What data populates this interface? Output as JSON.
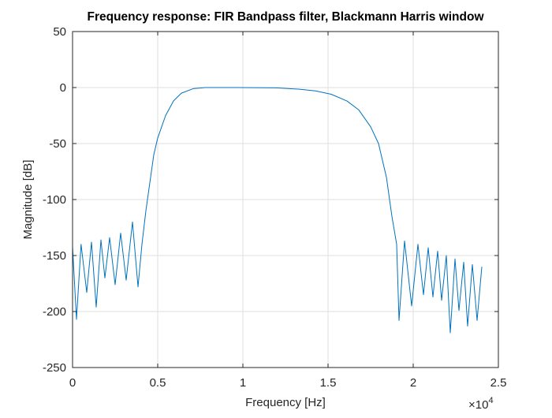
{
  "chart_data": {
    "type": "line",
    "title": "Frequency response: FIR Bandpass filter, Blackmann Harris window",
    "x_label": "Frequency [Hz]",
    "y_label": "Magnitude [dB]",
    "x_multiplier": {
      "base": "×10",
      "exponent": "4"
    },
    "x": [
      0,
      231,
      500,
      833,
      1111,
      1389,
      1667,
      1898,
      2176,
      2500,
      2824,
      3148,
      3519,
      3843,
      4074,
      4306,
      4537,
      4769,
      5000,
      5463,
      5926,
      6389,
      7083,
      7778,
      9630,
      11944,
      13333,
      14259,
      15185,
      16111,
      16806,
      17500,
      17963,
      18426,
      18750,
      19028,
      19167,
      19491,
      19907,
      20278,
      20602,
      20880,
      21157,
      21435,
      21667,
      21944,
      22176,
      22454,
      22685,
      22963,
      23194,
      23472,
      23750,
      24028
    ],
    "series": [
      {
        "color": "#0072bd",
        "values": [
          -142,
          -207,
          -140,
          -183,
          -138,
          -196,
          -136,
          -170,
          -134,
          -176,
          -130,
          -172,
          -120,
          -178,
          -140,
          -110,
          -85,
          -60,
          -45,
          -25,
          -12,
          -5,
          -1,
          0,
          0,
          -0.3,
          -1.5,
          -3,
          -6,
          -12,
          -20,
          -35,
          -50,
          -80,
          -115,
          -140,
          -208,
          -137,
          -195,
          -140,
          -185,
          -143,
          -187,
          -146,
          -190,
          -150,
          -219,
          -153,
          -199,
          -156,
          -213,
          -158,
          -208,
          -160
        ]
      }
    ],
    "xlim": [
      0,
      25000
    ],
    "xticks": [
      0,
      {
        "value": 5000,
        "label": "0.5"
      },
      {
        "value": 10000,
        "label": "1"
      },
      {
        "value": 15000,
        "label": "1.5"
      },
      {
        "value": 20000,
        "label": "2"
      },
      {
        "value": 25000,
        "label": "2.5"
      }
    ],
    "ylim": [
      -250,
      50
    ],
    "yticks": [
      -250,
      -200,
      -150,
      -100,
      -50,
      0,
      50
    ],
    "grid": true
  }
}
